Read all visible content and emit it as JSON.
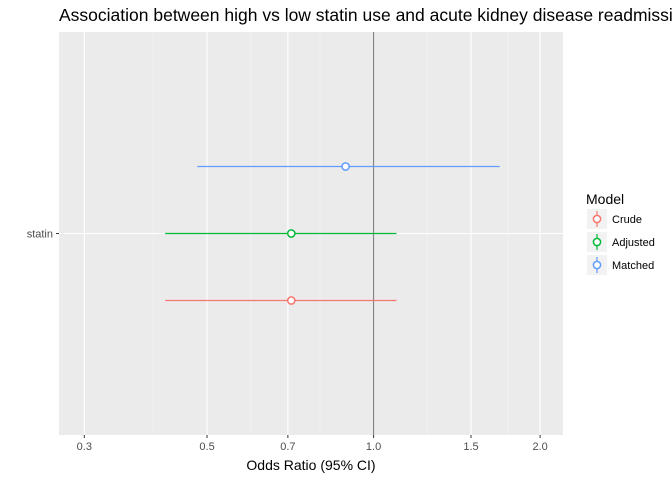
{
  "chart_data": {
    "type": "scatter",
    "title": "Association between high vs low statin use and acute kidney disease readmission",
    "xlabel": "Odds Ratio (95% CI)",
    "ylabel": "",
    "x_scale": "log",
    "xlim": [
      0.27,
      2.2
    ],
    "x_ticks": [
      0.3,
      0.5,
      0.7,
      1.0,
      1.5,
      2.0
    ],
    "x_tick_labels": [
      "0.3",
      "0.5",
      "0.7",
      "1.0",
      "1.5",
      "2.0"
    ],
    "x_minor_ticks": [
      0.4,
      0.6,
      0.8,
      1.25,
      1.75
    ],
    "reference_line": 1.0,
    "categories": [
      "statin"
    ],
    "grid": true,
    "legend": {
      "title": "Model",
      "position": "right",
      "entries": [
        "Crude",
        "Adjusted",
        "Matched"
      ]
    },
    "series": [
      {
        "name": "Crude",
        "color": "#F8766D",
        "category": "statin",
        "estimate": 0.71,
        "ci_low": 0.42,
        "ci_high": 1.1
      },
      {
        "name": "Adjusted",
        "color": "#00BA38",
        "category": "statin",
        "estimate": 0.71,
        "ci_low": 0.42,
        "ci_high": 1.1
      },
      {
        "name": "Matched",
        "color": "#619CFF",
        "category": "statin",
        "estimate": 0.89,
        "ci_low": 0.48,
        "ci_high": 1.69
      }
    ]
  }
}
